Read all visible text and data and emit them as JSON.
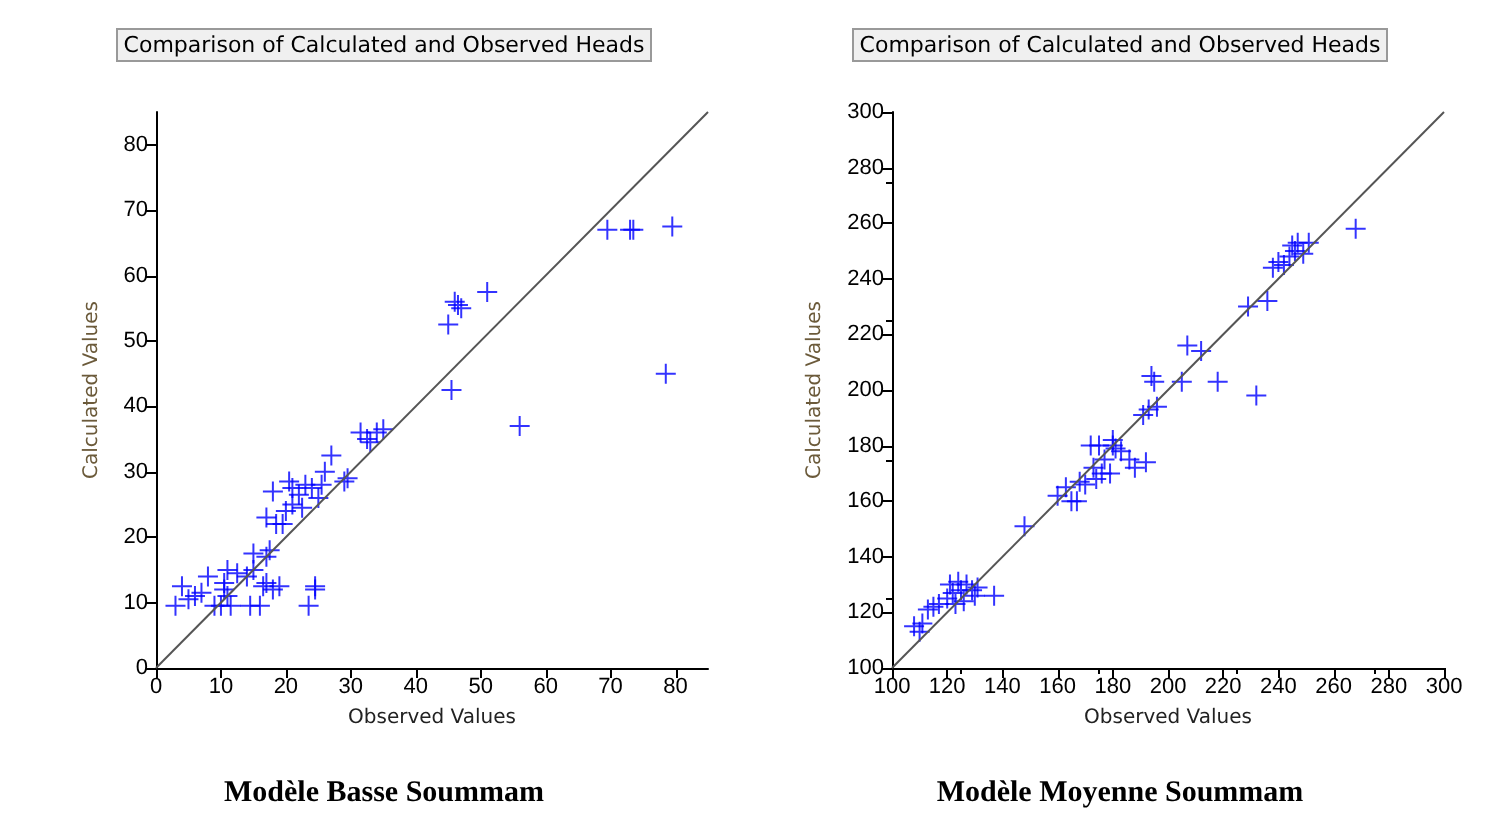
{
  "chart_data": [
    {
      "type": "scatter",
      "title": "Comparison of Calculated and Observed Heads",
      "xlabel": "Observed Values",
      "ylabel": "Calculated Values",
      "annotations": [
        "Modèle Basse Soummam"
      ],
      "grid": false,
      "xlim": [
        0,
        85
      ],
      "ylim": [
        0,
        85
      ],
      "xticks": [
        0,
        10,
        20,
        30,
        40,
        50,
        60,
        70,
        80
      ],
      "yticks": [
        0,
        10,
        20,
        30,
        40,
        50,
        60,
        70,
        80
      ],
      "series": [
        {
          "marker": "cross",
          "color": "#0000ff",
          "x": [
            3,
            4,
            5,
            6,
            7,
            8,
            9,
            10,
            10.5,
            10.5,
            11,
            11,
            11.5,
            12.5,
            14,
            14.5,
            15,
            15,
            16,
            16.5,
            17,
            17,
            17,
            17.5,
            18,
            18,
            18.5,
            19,
            19.5,
            20,
            20.5,
            21,
            21,
            22,
            22.5,
            23,
            23.5,
            24,
            24.5,
            24.5,
            25,
            25.5,
            26,
            27,
            29,
            29.5,
            31.5,
            32.5,
            33,
            34,
            35,
            45,
            45.5,
            46,
            46.5,
            47,
            51,
            56,
            69.5,
            73,
            73.5,
            78.5,
            79.5
          ],
          "values": [
            9.5,
            12.5,
            10.5,
            11,
            11.5,
            14,
            9.5,
            9.5,
            13,
            12,
            15,
            11,
            9.5,
            14.5,
            14,
            9.5,
            15,
            17.5,
            9.5,
            12.5,
            17,
            13,
            23,
            18,
            27,
            12,
            22,
            12.5,
            22,
            24,
            28.5,
            27.5,
            25,
            26.5,
            24.5,
            28,
            9.5,
            27.5,
            12.5,
            12,
            26,
            28,
            30,
            32.5,
            28.5,
            29,
            36,
            35,
            34.5,
            36,
            36.5,
            52.5,
            42.5,
            56,
            55.5,
            55,
            57.5,
            37,
            67,
            67,
            67,
            45,
            67.5
          ]
        },
        {
          "type": "line",
          "marker": "none",
          "color": "#555555",
          "x": [
            0,
            85
          ],
          "values": [
            0,
            85
          ]
        }
      ]
    },
    {
      "type": "scatter",
      "title": "Comparison of Calculated and Observed Heads",
      "xlabel": "Observed Values",
      "ylabel": "Calculated Values",
      "annotations": [
        "Modèle Moyenne Soummam"
      ],
      "grid": false,
      "xlim": [
        100,
        300
      ],
      "ylim": [
        100,
        300
      ],
      "xticks": [
        100,
        120,
        140,
        160,
        180,
        200,
        220,
        240,
        260,
        280,
        300
      ],
      "yticks": [
        100,
        120,
        140,
        160,
        180,
        200,
        220,
        240,
        260,
        280,
        300
      ],
      "series": [
        {
          "marker": "cross",
          "color": "#0000ff",
          "x": [
            108,
            110,
            111,
            113,
            115,
            117,
            120,
            121,
            122,
            123,
            124,
            125,
            126,
            127,
            129,
            130,
            131,
            137,
            148,
            160,
            163,
            165,
            167,
            168,
            170,
            172,
            173,
            174,
            175,
            176,
            177,
            179,
            180,
            180,
            181,
            183,
            186,
            188,
            192,
            191,
            193,
            194,
            195,
            196,
            205,
            207,
            212,
            218,
            229,
            232,
            236,
            238,
            240,
            242,
            244,
            245,
            246,
            247,
            249,
            251,
            268
          ],
          "values": [
            115,
            113,
            116,
            121,
            122,
            123,
            125,
            130,
            127,
            123,
            131,
            128,
            124,
            130,
            128,
            126,
            129,
            126,
            151,
            162,
            165,
            160,
            160,
            167,
            166,
            180,
            172,
            168,
            180,
            170,
            175,
            170,
            182,
            180,
            179,
            178,
            175,
            172,
            174,
            191,
            193,
            205,
            203,
            194,
            203,
            216,
            214,
            203,
            230,
            198,
            232,
            244,
            246,
            245,
            248,
            252,
            250,
            253,
            249,
            253,
            258
          ]
        },
        {
          "type": "line",
          "marker": "none",
          "color": "#555555",
          "x": [
            100,
            300
          ],
          "values": [
            100,
            300
          ]
        }
      ]
    }
  ]
}
